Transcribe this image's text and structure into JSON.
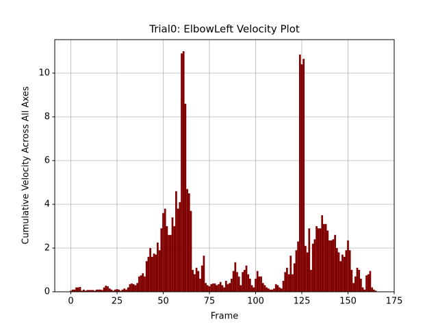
{
  "chart_data": {
    "type": "bar",
    "title": "Trial0: ElbowLeft Velocity Plot",
    "x_label": "Frame",
    "y_label": "Cumulative Velocity Across All Axes",
    "color": "#800000",
    "grid": true,
    "xlim": [
      -8.7,
      175
    ],
    "ylim": [
      0,
      11.53
    ],
    "xticks": [
      0,
      25,
      50,
      75,
      100,
      125,
      150,
      175
    ],
    "yticks": [
      0,
      2,
      4,
      6,
      8,
      10
    ],
    "x": [
      0,
      1,
      2,
      3,
      4,
      5,
      6,
      7,
      8,
      9,
      10,
      11,
      12,
      13,
      14,
      15,
      16,
      17,
      18,
      19,
      20,
      21,
      22,
      23,
      24,
      25,
      26,
      27,
      28,
      29,
      30,
      31,
      32,
      33,
      34,
      35,
      36,
      37,
      38,
      39,
      40,
      41,
      42,
      43,
      44,
      45,
      46,
      47,
      48,
      49,
      50,
      51,
      52,
      53,
      54,
      55,
      56,
      57,
      58,
      59,
      60,
      61,
      62,
      63,
      64,
      65,
      66,
      67,
      68,
      69,
      70,
      71,
      72,
      73,
      74,
      75,
      76,
      77,
      78,
      79,
      80,
      81,
      82,
      83,
      84,
      85,
      86,
      87,
      88,
      89,
      90,
      91,
      92,
      93,
      94,
      95,
      96,
      97,
      98,
      99,
      100,
      101,
      102,
      103,
      104,
      105,
      106,
      107,
      108,
      109,
      110,
      111,
      112,
      113,
      114,
      115,
      116,
      117,
      118,
      119,
      120,
      121,
      122,
      123,
      124,
      125,
      126,
      127,
      128,
      129,
      130,
      131,
      132,
      133,
      134,
      135,
      136,
      137,
      138,
      139,
      140,
      141,
      142,
      143,
      144,
      145,
      146,
      147,
      148,
      149,
      150,
      151,
      152,
      153,
      154,
      155,
      156,
      157,
      158,
      159,
      160,
      161,
      162,
      163,
      164,
      165
    ],
    "values": [
      0.05,
      0.1,
      0.1,
      0.2,
      0.2,
      0.22,
      0.05,
      0.1,
      0.05,
      0.08,
      0.08,
      0.08,
      0.08,
      0.05,
      0.1,
      0.1,
      0.1,
      0.08,
      0.2,
      0.28,
      0.25,
      0.15,
      0.1,
      0.05,
      0.1,
      0.12,
      0.1,
      0.05,
      0.1,
      0.15,
      0.1,
      0.2,
      0.35,
      0.38,
      0.35,
      0.3,
      0.4,
      0.7,
      0.75,
      0.85,
      0.7,
      1.4,
      1.6,
      2.0,
      1.6,
      1.75,
      1.7,
      2.25,
      1.9,
      2.9,
      3.6,
      3.8,
      3.0,
      2.6,
      2.6,
      3.4,
      3.0,
      4.6,
      3.8,
      4.1,
      10.9,
      11.0,
      8.6,
      4.7,
      4.5,
      3.7,
      1.0,
      0.8,
      1.1,
      0.95,
      0.6,
      1.2,
      1.65,
      0.4,
      0.3,
      0.25,
      0.35,
      0.38,
      0.38,
      0.3,
      0.35,
      0.45,
      0.3,
      0.2,
      0.5,
      0.35,
      0.4,
      0.6,
      0.95,
      1.35,
      0.9,
      0.7,
      0.3,
      0.9,
      1.0,
      1.2,
      0.8,
      0.6,
      0.3,
      0.2,
      0.6,
      0.95,
      0.7,
      0.7,
      0.4,
      0.3,
      0.2,
      0.15,
      0.1,
      0.1,
      0.15,
      0.35,
      0.3,
      0.2,
      0.15,
      0.5,
      0.9,
      1.1,
      0.8,
      1.65,
      0.8,
      1.3,
      1.9,
      2.3,
      10.85,
      10.4,
      10.65,
      2.1,
      1.8,
      2.9,
      1.0,
      2.2,
      2.4,
      3.0,
      2.9,
      2.9,
      3.5,
      3.1,
      3.1,
      2.8,
      2.35,
      2.35,
      2.4,
      2.6,
      2.0,
      1.8,
      1.4,
      1.7,
      1.6,
      1.9,
      2.35,
      1.9,
      1.0,
      0.4,
      0.7,
      1.1,
      1.0,
      0.6,
      0.2,
      0.1,
      0.75,
      0.8,
      0.95,
      0.2,
      0.1,
      0.05
    ]
  }
}
